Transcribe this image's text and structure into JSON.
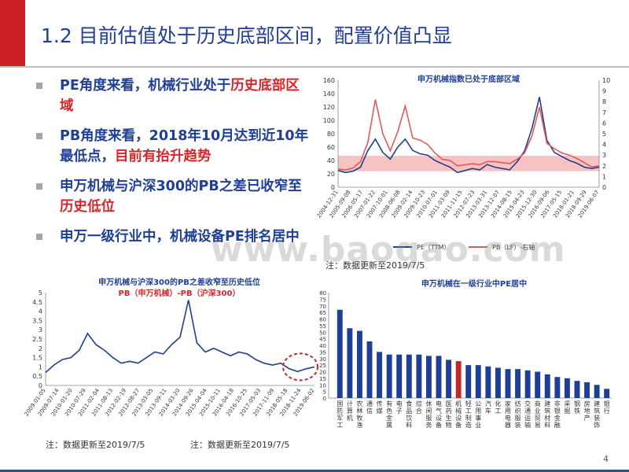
{
  "slide": {
    "title": "1.2 目前估值处于历史底部区间，配置价值凸显",
    "page_number": "4",
    "watermark": "www.baogao.com",
    "colors": {
      "accent_red": "#cc1f24",
      "title_blue": "#1f3f96",
      "bar_blue": "#1f3f96",
      "bar_red": "#c0282e",
      "pe_line": "#1f3e8e",
      "pb_line": "#e0595d"
    }
  },
  "bullets": [
    {
      "parts": [
        "PE角度来看，机械行业处于",
        "历史底部区域",
        ""
      ]
    },
    {
      "parts": [
        "PB角度来看，2018年10月达到近10年最低点，",
        "目前有抬升趋势",
        ""
      ]
    },
    {
      "parts": [
        "申万机械与沪深300的PB之差已收窄至",
        "历史低位",
        ""
      ]
    },
    {
      "parts": [
        "申万一级行业中，机械设备PE排名居中",
        "",
        ""
      ]
    }
  ],
  "chart_data": [
    {
      "type": "line",
      "title": "申万机械指数已处于底部区域",
      "x_tick_labels": [
        "2004-12-31",
        "2005-09-08",
        "2006-05-17",
        "2007-01-22",
        "2007-10-01",
        "2008-06-08",
        "2009-02-14",
        "2009-10-23",
        "2010-07-01",
        "2011-03-09",
        "2011-11-15",
        "2012-07-23",
        "2013-03-31",
        "2013-12-07",
        "2014-08-15",
        "2015-04-23",
        "2015-12-30",
        "2016-09-06",
        "2017-05-15",
        "2018-01-21",
        "2018-09-29",
        "2019-06-07"
      ],
      "ylim_left": [
        0,
        160
      ],
      "yticks_left": [
        0,
        20,
        40,
        60,
        80,
        100,
        120,
        140,
        160
      ],
      "ylim_right": [
        0,
        10
      ],
      "yticks_right": [
        0,
        1,
        2,
        3,
        4,
        5,
        6,
        7,
        8,
        9,
        10
      ],
      "band_left": [
        24,
        47
      ],
      "series": [
        {
          "name": "PE（TTM）",
          "axis": "left",
          "values": [
            25,
            22,
            24,
            30,
            55,
            72,
            52,
            42,
            60,
            72,
            55,
            50,
            48,
            40,
            35,
            30,
            22,
            25,
            28,
            26,
            34,
            30,
            28,
            26,
            38,
            54,
            88,
            135,
            70,
            52,
            46,
            40,
            36,
            30,
            28,
            30
          ]
        },
        {
          "name": "PB（LF）-右轴",
          "axis": "right",
          "values": [
            1.7,
            1.6,
            1.8,
            2.4,
            4.2,
            8.2,
            5.0,
            3.4,
            5.2,
            7.6,
            4.6,
            4.4,
            4.0,
            3.2,
            2.6,
            2.5,
            2.0,
            2.1,
            2.2,
            2.1,
            2.4,
            2.4,
            2.3,
            2.2,
            2.6,
            3.2,
            4.8,
            7.5,
            4.1,
            3.6,
            3.2,
            3.0,
            2.7,
            2.3,
            1.9,
            2.0
          ]
        }
      ],
      "legend": [
        {
          "label": "PE（TTM）",
          "position": "bottom-left"
        },
        {
          "label": "PB（LF）-右轴",
          "position": "bottom-right"
        }
      ]
    },
    {
      "type": "line",
      "title": "申万机械与沪深300的PB之差收窄至历史低位",
      "subtitle": "PB（申万机械）-PB（沪深300）",
      "x_tick_labels": [
        "2009-01-05",
        "2009-07-14",
        "2010-01-20",
        "2010-07-29",
        "2011-02-04",
        "2011-08-13",
        "2012-02-19",
        "2012-08-27",
        "2013-03-05",
        "2013-09-11",
        "2014-03-20",
        "2014-09-26",
        "2015-04-04",
        "2015-10-11",
        "2016-04-18",
        "2016-10-25",
        "2017-05-03",
        "2017-11-09",
        "2018-05-18",
        "2018-11-24",
        "2019-06-02"
      ],
      "ylim": [
        0,
        5
      ],
      "yticks": [
        0,
        0.5,
        1,
        1.5,
        2,
        2.5,
        3,
        3.5,
        4,
        4.5,
        5
      ],
      "series": [
        {
          "name": "PB差",
          "values": [
            0.7,
            1.1,
            1.4,
            1.5,
            1.9,
            2.8,
            2.2,
            1.9,
            1.5,
            1.2,
            1.3,
            1.2,
            1.5,
            1.8,
            1.7,
            2.2,
            2.6,
            4.6,
            2.3,
            1.8,
            2.0,
            1.8,
            1.6,
            1.8,
            1.7,
            1.4,
            1.2,
            1.1,
            1.2,
            0.9,
            0.75,
            0.9,
            1.0
          ]
        }
      ],
      "annotation": "circle-highlight-latest"
    },
    {
      "type": "bar",
      "title": "申万机械在一级行业中PE居中",
      "ylim": [
        0,
        80
      ],
      "yticks": [
        0,
        5,
        10,
        15,
        20,
        25,
        30,
        35,
        40,
        45,
        50,
        55,
        60,
        65,
        70,
        75,
        80
      ],
      "categories": [
        "国防军工",
        "计算机",
        "农林牧渔",
        "通信",
        "传媒",
        "有色金属",
        "电子",
        "食品饮料",
        "综合",
        "休闲服务",
        "电气设备",
        "医药生物",
        "机械设备",
        "轻工制造",
        "公用事业",
        "汽车",
        "化工",
        "家用电器",
        "纺织服装",
        "交通运输",
        "商业贸易",
        "建筑材料",
        "非银金融",
        "采掘",
        "钢铁",
        "房地产",
        "建筑装饰",
        "银行"
      ],
      "values": [
        67,
        53,
        51,
        43,
        35,
        33,
        33,
        33,
        33,
        32,
        32,
        29,
        28,
        25,
        25,
        24,
        23,
        22,
        22,
        21,
        20,
        18,
        16,
        15,
        13,
        12,
        10,
        7
      ],
      "highlight": "机械设备"
    }
  ],
  "notes": [
    "注：数据更新至2019/7/5",
    "注：数据更新至2019/7/5",
    "注：数据更新至2019/7/5"
  ]
}
